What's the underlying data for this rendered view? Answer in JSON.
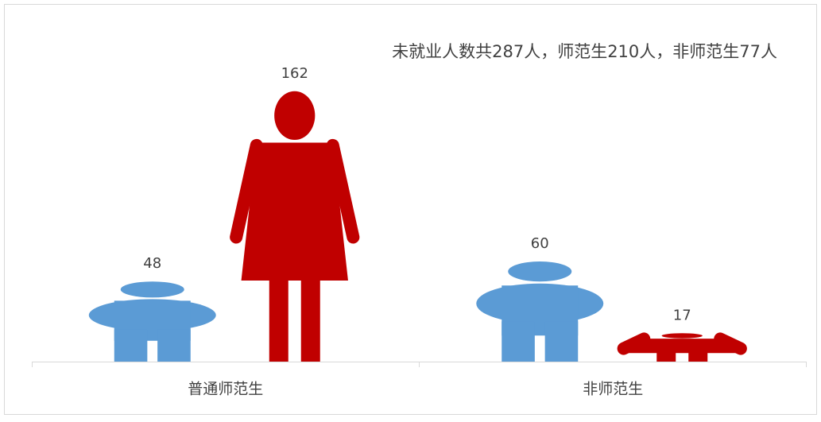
{
  "chart_data": {
    "type": "pictograph",
    "annotation": "未就业人数共287人，师范生210人，非师范生77人",
    "categories": [
      "普通师范生",
      "非师范生"
    ],
    "series": [
      {
        "color": "#5b9bd5",
        "shape": "male",
        "values": [
          48,
          60
        ]
      },
      {
        "color": "#c00000",
        "shape": "female",
        "values": [
          162,
          17
        ]
      }
    ],
    "ylim": [
      0,
      180
    ]
  }
}
